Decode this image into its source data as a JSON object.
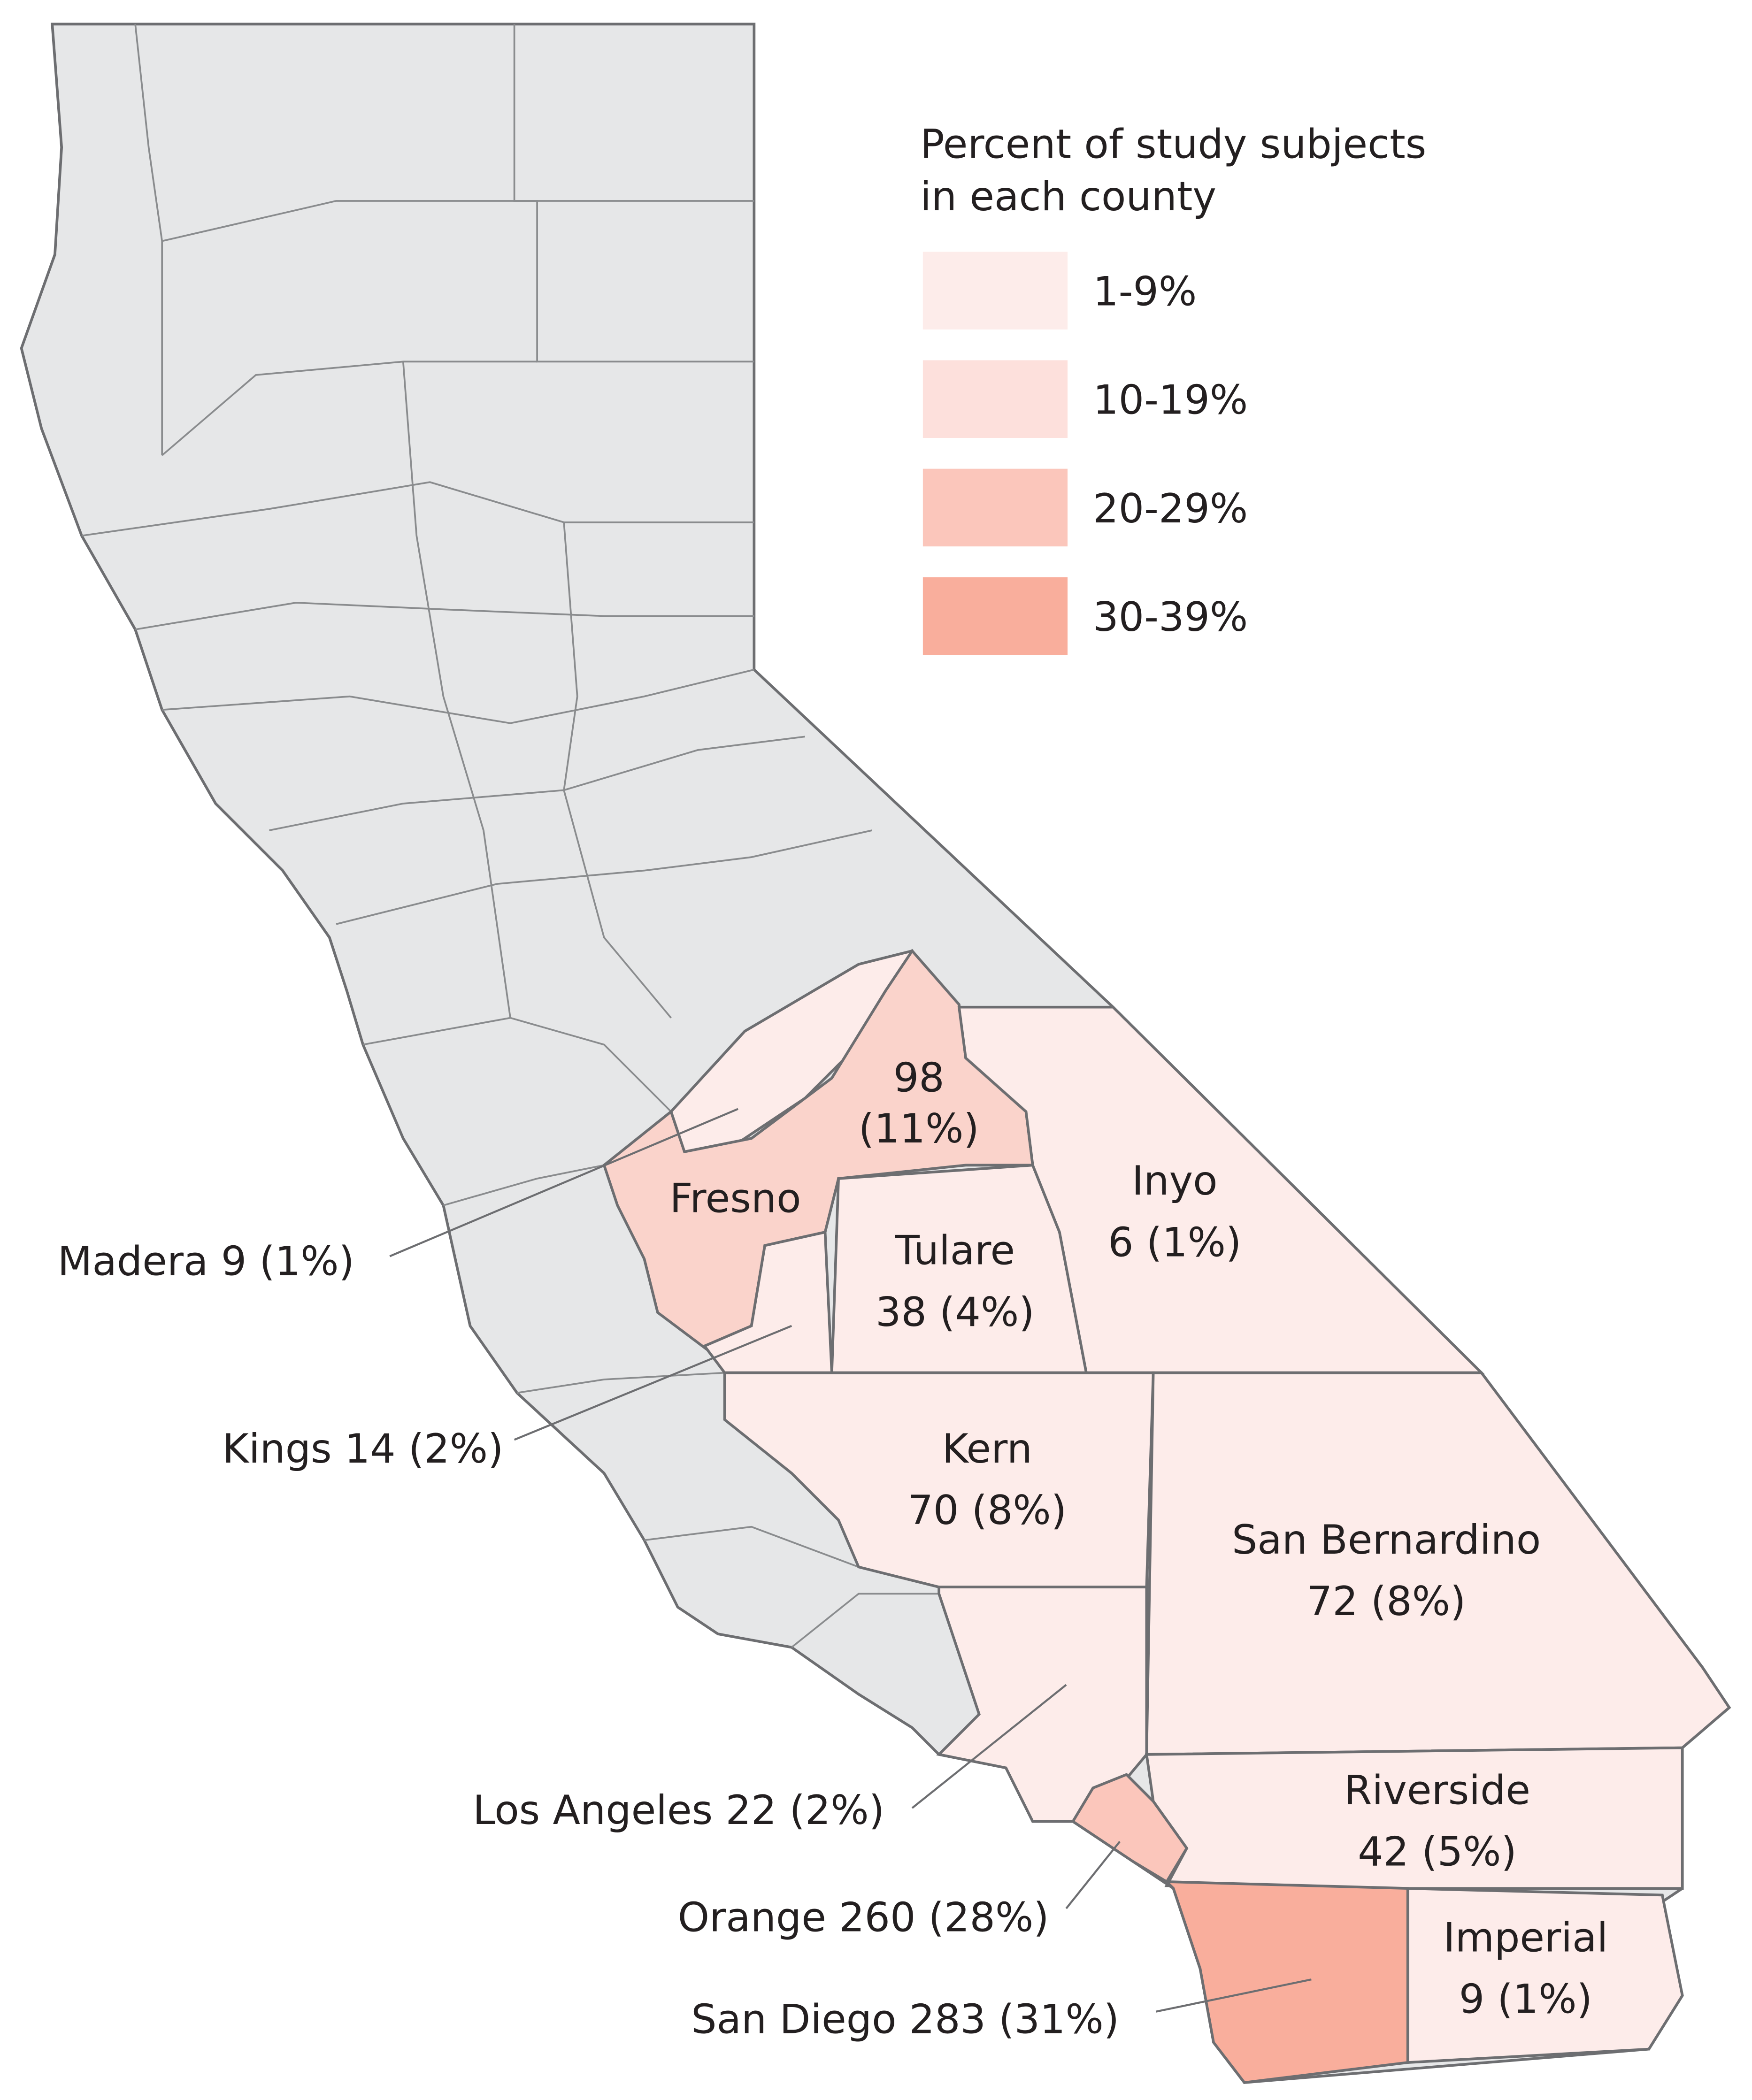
{
  "legend": {
    "title_lines": [
      "Percent of study subjects",
      "in each county"
    ],
    "items": [
      {
        "label": "1-9%",
        "color": "#fdecea"
      },
      {
        "label": "10-19%",
        "color": "#fde0dc"
      },
      {
        "label": "20-29%",
        "color": "#fbc6bb"
      },
      {
        "label": "30-39%",
        "color": "#f9ae9c"
      }
    ]
  },
  "counties": [
    {
      "name": "Madera",
      "count": 9,
      "share": "(1%)",
      "color": "#fdecea"
    },
    {
      "name": "Fresno",
      "count": 98,
      "share": "(11%)",
      "color": "#fad3cb"
    },
    {
      "name": "Kings",
      "count": 14,
      "share": "(2%)",
      "color": "#fdecea"
    },
    {
      "name": "Tulare",
      "count": 38,
      "share": "(4%)",
      "color": "#fdecea"
    },
    {
      "name": "Inyo",
      "count": 6,
      "share": "(1%)",
      "color": "#fdecea"
    },
    {
      "name": "Kern",
      "count": 70,
      "share": "(8%)",
      "color": "#fdecea"
    },
    {
      "name": "San Bernardino",
      "count": 72,
      "share": "(8%)",
      "color": "#fdecea"
    },
    {
      "name": "Los Angeles",
      "count": 22,
      "share": "(2%)",
      "color": "#fdecea"
    },
    {
      "name": "Riverside",
      "count": 42,
      "share": "(5%)",
      "color": "#fdecea"
    },
    {
      "name": "Orange",
      "count": 260,
      "share": "(28%)",
      "color": "#fbc6bb"
    },
    {
      "name": "San Diego",
      "count": 283,
      "share": "(31%)",
      "color": "#f9ae9c"
    },
    {
      "name": "Imperial",
      "count": 9,
      "share": "(1%)",
      "color": "#fdecea"
    }
  ]
}
